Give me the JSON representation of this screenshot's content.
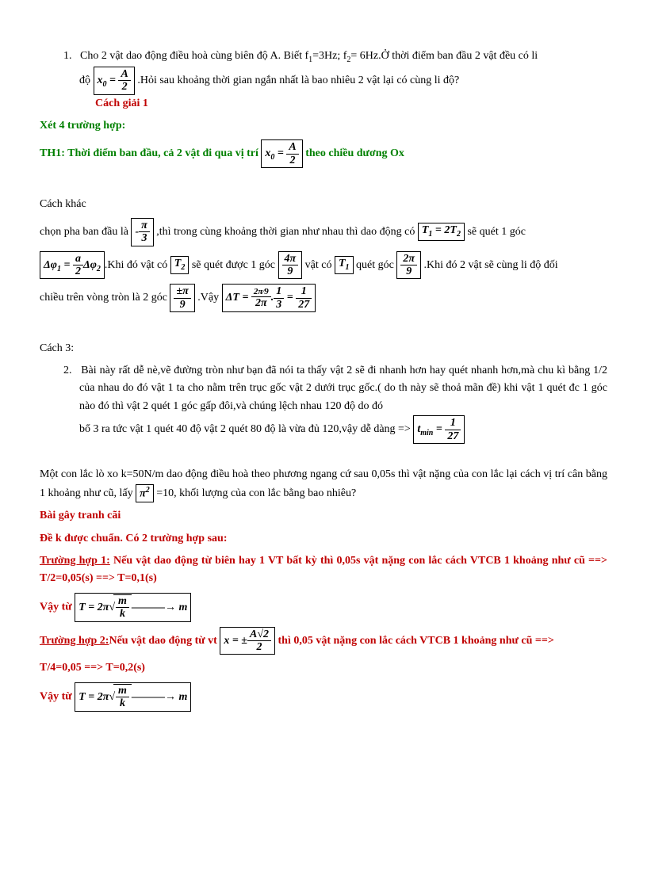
{
  "q1": {
    "num": "1.",
    "text_a": "Cho 2 vật dao động điều hoà cùng biên độ A. Biết f",
    "f1_sub": "1",
    "eq1": "=3Hz; f",
    "f2_sub": "2",
    "eq2": "= 6Hz.Ở thời điểm ban đầu 2 vật đều có li",
    "text_b": "độ",
    "box_x0_lhs": "x",
    "box_x0_sub": "0",
    "box_x0_eq": " = ",
    "box_x0_num": "A",
    "box_x0_den": "2",
    "text_c": ".Hỏi sau khoảng thời gian ngắn nhất là bao nhiêu 2 vật lại có cùng li độ?",
    "cach1": "Cách giải 1",
    "xet4": "Xét 4 trường hợp:",
    "th1_a": "TH1: Thời điểm ban đầu, cả 2 vật đi qua vị trí",
    "th1_b": "theo chiều dương Ox"
  },
  "cachkhac": {
    "title": "Cách khác",
    "line1_a": "chọn pha ban đầu là",
    "box_pi3_num": "π",
    "box_pi3_den": "3",
    "line1_b": ",thì trong cùng khoảng thời gian như nhau thì dao động có",
    "box_T1T2": "T",
    "box_T1T2_sub1": "1",
    "box_T1T2_eq": " = 2T",
    "box_T1T2_sub2": "2",
    "line1_c": "sẽ quét 1 góc",
    "box_dphi_lhs": "Δφ",
    "box_dphi_sub1": "1",
    "box_dphi_eq": " = ",
    "box_dphi_num": "a",
    "box_dphi_den": "2",
    "box_dphi_rhs": "Δφ",
    "box_dphi_sub2": "2",
    "line2_a": ".Khi đó vật có",
    "box_T2": "T",
    "box_T2_sub": "2",
    "line2_b": "sẽ quét được 1 góc",
    "box_4pi9_num": "4π",
    "box_4pi9_den": "9",
    "line2_c": "vật có",
    "box_T1": "T",
    "box_T1_sub": "1",
    "line2_d": "quét góc",
    "box_2pi9_num": "2π",
    "box_2pi9_den": "9",
    "line2_e": ".Khi đó 2 vật sẽ cùng li độ đối",
    "line3_a": "chiều trên vòng tròn là 2 góc",
    "box_pmpi9_num": "±π",
    "box_pmpi9_den": "9",
    "line3_b": ".Vậy",
    "box_dT_lhs": "ΔT = ",
    "box_dT_n1_num": "2π⁄9",
    "box_dT_n1_den": "2π",
    "box_dT_dot1": ".",
    "box_dT_n2_num": "1",
    "box_dT_n2_den": "3",
    "box_dT_eq": " = ",
    "box_dT_n3_num": "1",
    "box_dT_n3_den": "27"
  },
  "cach3": {
    "title": "Cách 3:",
    "num": "2.",
    "text": "Bài này rất dễ nè,vẽ đường tròn như bạn đã nói ta thấy vật 2 sẽ đi nhanh hơn hay quét nhanh hơn,mà chu kì bằng 1/2 của nhau do đó vật 1 ta cho nằm trên trục gốc vật 2 dưới trục gốc.( do th này sẽ thoả mãn đề) khi vật 1 quét đc 1 góc nào đó thì vật 2 quét 1 góc gấp đôi,và chúng lệch nhau 120 độ do đó",
    "line2_a": "bổ 3 ra tức vật 1 quét 40 độ vật 2 quét 80 độ là vừa đủ 120,vậy dễ dàng =>",
    "box_tmin_lhs": "t",
    "box_tmin_sub": "min",
    "box_tmin_eq": " = ",
    "box_tmin_num": "1",
    "box_tmin_den": "27"
  },
  "p2": {
    "text_a": "Một con lắc lò xo k=50N/m dao động điều hoà theo phương ngang cứ sau 0,05s thì vật nặng của con lắc lại cách vị trí cân bằng 1 khoảng như cũ, lấy",
    "box_pi2": "π",
    "box_pi2_sup": "2",
    "text_b": "=10, khối lượng của con lắc bằng bao nhiêu?",
    "bai": "Bài gây tranh cãi",
    "dek": "Đề k được chuẩn. Có 2 trường hợp sau:",
    "th1_label": "Trường hợp 1:",
    "th1_text": " Nếu vật dao động từ biên hay 1 VT bất kỳ thì 0,05s vật nặng con lắc cách VTCB 1 khoảng như cũ ==> T/2=0,05(s) ==> T=0,1(s)",
    "vay": "Vậy từ",
    "box_T_lhs": "T = 2π",
    "box_T_num": "m",
    "box_T_den": "k",
    "box_T_arrow": "———→ m",
    "th2_label": "Trường hợp 2:",
    "th2_a": "Nếu vật dao động từ vt",
    "box_x_lhs": "x = ±",
    "box_x_num": "A√2",
    "box_x_den": "2",
    "th2_b": "thì 0,05 vật nặng con lắc cách VTCB 1 khoảng như cũ ==>",
    "th2_c": "T/4=0,05 ==> T=0,2(s)"
  },
  "colors": {
    "red": "#c00000",
    "green": "#008000",
    "black": "#000000"
  }
}
